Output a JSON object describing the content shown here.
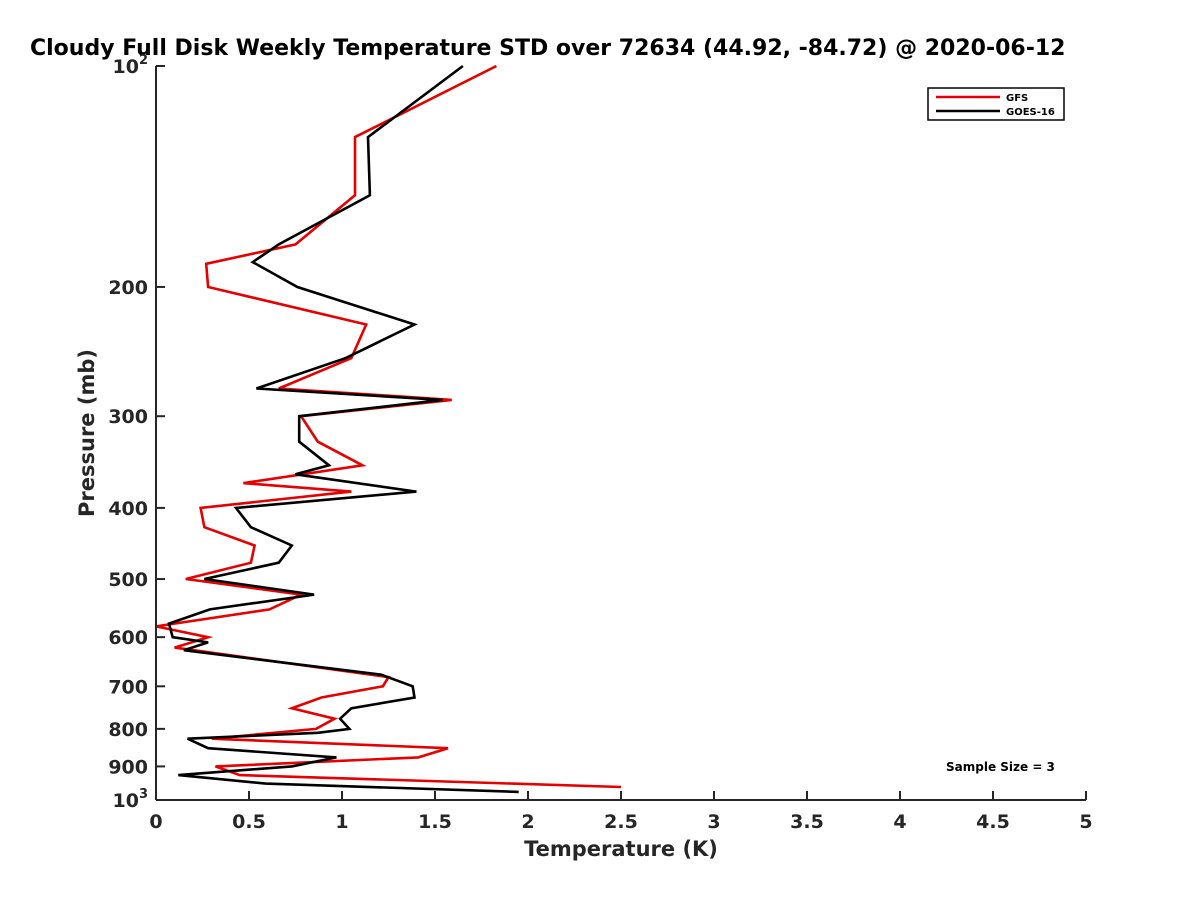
{
  "chart_data": {
    "type": "line",
    "title": "Cloudy Full Disk Weekly Temperature STD over 72634 (44.92, -84.72) @ 2020-06-12",
    "xlabel": "Temperature (K)",
    "ylabel": "Pressure (mb)",
    "xlim": [
      0,
      5
    ],
    "ylim": [
      100,
      1000
    ],
    "y_scale": "log",
    "y_reversed": true,
    "x_ticks": [
      "0",
      "0.5",
      "1",
      "1.5",
      "2",
      "2.5",
      "3",
      "3.5",
      "4",
      "4.5",
      "5"
    ],
    "y_ticks": [
      {
        "value": 100,
        "label": "10",
        "exp": "2"
      },
      {
        "value": 200,
        "label": "200"
      },
      {
        "value": 300,
        "label": "300"
      },
      {
        "value": 400,
        "label": "400"
      },
      {
        "value": 500,
        "label": "500"
      },
      {
        "value": 600,
        "label": "600"
      },
      {
        "value": 700,
        "label": "700"
      },
      {
        "value": 800,
        "label": "800"
      },
      {
        "value": 900,
        "label": "900"
      },
      {
        "value": 1000,
        "label": "10",
        "exp": "3"
      }
    ],
    "legend_position": "top-right",
    "annotation": "Sample Size = 3",
    "series": [
      {
        "name": "GFS",
        "color": "#e50000",
        "points": [
          [
            1.83,
            100
          ],
          [
            1.07,
            125
          ],
          [
            1.07,
            150
          ],
          [
            0.75,
            175
          ],
          [
            0.27,
            186
          ],
          [
            0.28,
            200
          ],
          [
            1.13,
            225
          ],
          [
            1.05,
            250
          ],
          [
            0.66,
            275
          ],
          [
            1.59,
            285
          ],
          [
            0.78,
            300
          ],
          [
            0.87,
            325
          ],
          [
            1.11,
            350
          ],
          [
            0.47,
            370
          ],
          [
            1.05,
            380
          ],
          [
            0.24,
            400
          ],
          [
            0.26,
            425
          ],
          [
            0.53,
            450
          ],
          [
            0.51,
            475
          ],
          [
            0.16,
            500
          ],
          [
            0.78,
            525
          ],
          [
            0.61,
            550
          ],
          [
            0.0,
            580
          ],
          [
            0.28,
            600
          ],
          [
            0.1,
            620
          ],
          [
            1.25,
            680
          ],
          [
            1.22,
            700
          ],
          [
            0.89,
            725
          ],
          [
            0.73,
            750
          ],
          [
            0.96,
            775
          ],
          [
            0.86,
            800
          ],
          [
            0.3,
            825
          ],
          [
            1.57,
            850
          ],
          [
            1.41,
            875
          ],
          [
            0.32,
            900
          ],
          [
            0.45,
            925
          ],
          [
            2.5,
            960
          ]
        ]
      },
      {
        "name": "GOES-16",
        "color": "#000000",
        "points": [
          [
            1.65,
            100
          ],
          [
            1.14,
            125
          ],
          [
            1.15,
            150
          ],
          [
            0.66,
            175
          ],
          [
            0.52,
            185
          ],
          [
            0.76,
            200
          ],
          [
            1.39,
            225
          ],
          [
            1.02,
            250
          ],
          [
            0.54,
            275
          ],
          [
            1.54,
            285
          ],
          [
            0.77,
            300
          ],
          [
            0.77,
            325
          ],
          [
            0.93,
            350
          ],
          [
            0.75,
            360
          ],
          [
            1.4,
            380
          ],
          [
            0.43,
            400
          ],
          [
            0.51,
            425
          ],
          [
            0.73,
            450
          ],
          [
            0.66,
            475
          ],
          [
            0.26,
            500
          ],
          [
            0.85,
            525
          ],
          [
            0.29,
            550
          ],
          [
            0.07,
            575
          ],
          [
            0.09,
            600
          ],
          [
            0.28,
            610
          ],
          [
            0.15,
            625
          ],
          [
            1.21,
            675
          ],
          [
            1.38,
            700
          ],
          [
            1.39,
            725
          ],
          [
            1.05,
            750
          ],
          [
            0.99,
            775
          ],
          [
            1.04,
            800
          ],
          [
            0.87,
            810
          ],
          [
            0.17,
            825
          ],
          [
            0.28,
            850
          ],
          [
            0.97,
            875
          ],
          [
            0.73,
            900
          ],
          [
            0.12,
            925
          ],
          [
            0.59,
            950
          ],
          [
            1.95,
            975
          ]
        ]
      }
    ]
  }
}
